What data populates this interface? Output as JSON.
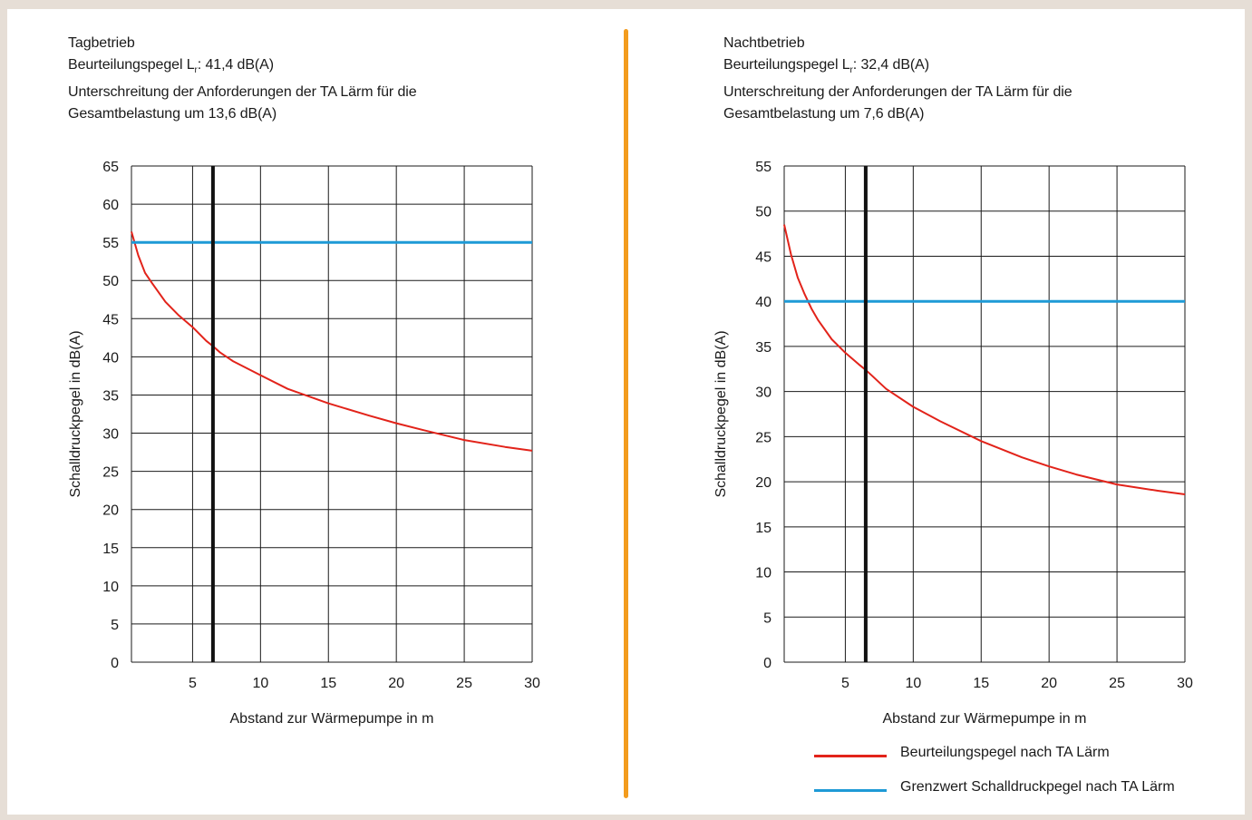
{
  "colors": {
    "red": "#e2231a",
    "blue": "#1e9ad6",
    "divider": "#f39c1e",
    "grid": "#1a1a1a"
  },
  "legend": {
    "red_label": "Beurteilungspegel nach TA Lärm",
    "blue_label": "Grenzwert Schalldruckpegel nach TA Lärm"
  },
  "chart_data": [
    {
      "type": "line",
      "header": {
        "title": "Tagbetrieb",
        "line1_prefix": "Beurteilungspegel L",
        "line1_sub": "r",
        "line1_suffix": ": 41,4 dB(A)",
        "line2": "Unterschreitung der Anforderungen der TA Lärm für die",
        "line3": "Gesamtbelastung um 13,6 dB(A)"
      },
      "xlabel": "Abstand zur Wärmepumpe in m",
      "ylabel": "Schalldruckpegel in dB(A)",
      "xlim": [
        0.5,
        30
      ],
      "ylim": [
        0,
        65
      ],
      "xticks": [
        5,
        10,
        15,
        20,
        25,
        30
      ],
      "yticks": [
        0,
        5,
        10,
        15,
        20,
        25,
        30,
        35,
        40,
        45,
        50,
        55,
        60,
        65
      ],
      "vertical_marker_x": 6.5,
      "series": [
        {
          "color": "red",
          "x": [
            0.5,
            1,
            1.5,
            2,
            3,
            4,
            5,
            6,
            6.5,
            7,
            8,
            10,
            12,
            15,
            18,
            20,
            22,
            25,
            28,
            30
          ],
          "y": [
            56.4,
            53.3,
            51.0,
            49.7,
            47.2,
            45.4,
            43.9,
            42.1,
            41.4,
            40.6,
            39.4,
            37.6,
            35.8,
            33.9,
            32.3,
            31.3,
            30.4,
            29.1,
            28.2,
            27.7
          ]
        },
        {
          "color": "blue",
          "x": [
            0.5,
            30
          ],
          "y": [
            55,
            55
          ]
        }
      ]
    },
    {
      "type": "line",
      "header": {
        "title": "Nachtbetrieb",
        "line1_prefix": "Beurteilungspegel L",
        "line1_sub": "r",
        "line1_suffix": ": 32,4 dB(A)",
        "line2": "Unterschreitung der Anforderungen der TA Lärm für die",
        "line3": "Gesamtbelastung um 7,6 dB(A)"
      },
      "xlabel": "Abstand zur Wärmepumpe in m",
      "ylabel": "Schalldruckpegel in dB(A)",
      "xlim": [
        0.5,
        30
      ],
      "ylim": [
        0,
        55
      ],
      "xticks": [
        5,
        10,
        15,
        20,
        25,
        30
      ],
      "yticks": [
        0,
        5,
        10,
        15,
        20,
        25,
        30,
        35,
        40,
        45,
        50,
        55
      ],
      "vertical_marker_x": 6.5,
      "series": [
        {
          "color": "red",
          "x": [
            0.5,
            1,
            1.5,
            2,
            2.5,
            3,
            4,
            5,
            6,
            6.5,
            7,
            8,
            10,
            12,
            15,
            18,
            20,
            22,
            25,
            28,
            30
          ],
          "y": [
            48.5,
            45.2,
            42.6,
            40.8,
            39.2,
            37.9,
            35.8,
            34.3,
            33.0,
            32.4,
            31.7,
            30.3,
            28.3,
            26.7,
            24.5,
            22.7,
            21.7,
            20.8,
            19.7,
            19.0,
            18.6
          ]
        },
        {
          "color": "blue",
          "x": [
            0.5,
            30
          ],
          "y": [
            40,
            40
          ]
        }
      ]
    }
  ]
}
